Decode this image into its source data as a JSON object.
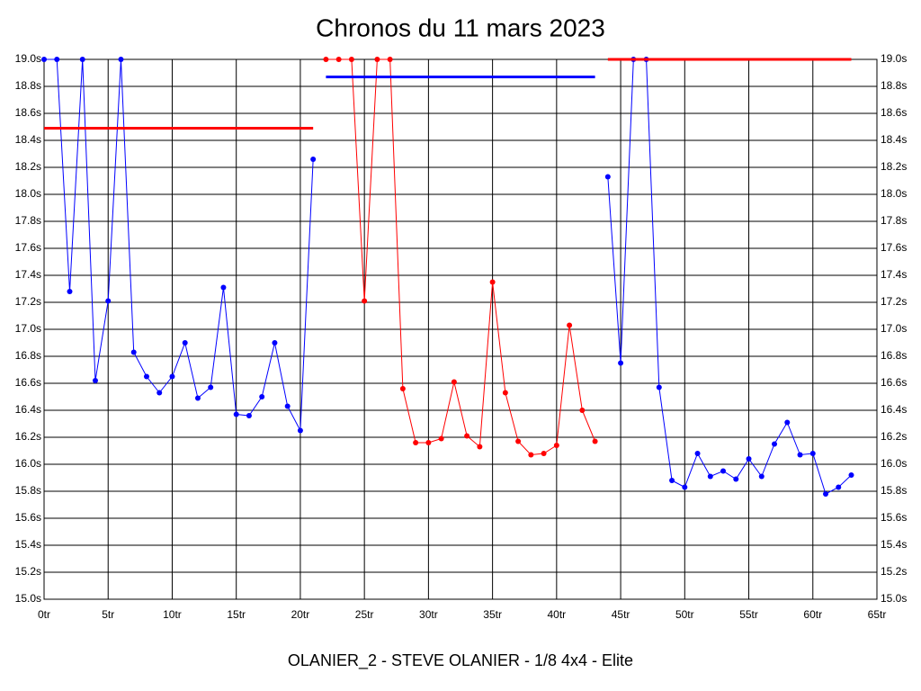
{
  "chart_data": {
    "type": "line",
    "title": "Chronos du 11 mars 2023",
    "x_label": "OLANIER_2 - STEVE OLANIER - 1/8 4x4 - Elite",
    "xlim": [
      0,
      65
    ],
    "xticks": [
      {
        "value": 0,
        "label": "0tr"
      },
      {
        "value": 5,
        "label": "5tr"
      },
      {
        "value": 10,
        "label": "10tr"
      },
      {
        "value": 15,
        "label": "15tr"
      },
      {
        "value": 20,
        "label": "20tr"
      },
      {
        "value": 25,
        "label": "25tr"
      },
      {
        "value": 30,
        "label": "30tr"
      },
      {
        "value": 35,
        "label": "35tr"
      },
      {
        "value": 40,
        "label": "40tr"
      },
      {
        "value": 45,
        "label": "45tr"
      },
      {
        "value": 50,
        "label": "50tr"
      },
      {
        "value": 55,
        "label": "55tr"
      },
      {
        "value": 60,
        "label": "60tr"
      },
      {
        "value": 65,
        "label": "65tr"
      }
    ],
    "ylim": [
      15,
      19
    ],
    "yticks": [
      {
        "value": 15,
        "label": "15.0s"
      },
      {
        "value": 15.2,
        "label": "15.2s"
      },
      {
        "value": 15.4,
        "label": "15.4s"
      },
      {
        "value": 15.6,
        "label": "15.6s"
      },
      {
        "value": 15.8,
        "label": "15.8s"
      },
      {
        "value": 16,
        "label": "16.0s"
      },
      {
        "value": 16.2,
        "label": "16.2s"
      },
      {
        "value": 16.4,
        "label": "16.4s"
      },
      {
        "value": 16.6,
        "label": "16.6s"
      },
      {
        "value": 16.8,
        "label": "16.8s"
      },
      {
        "value": 17,
        "label": "17.0s"
      },
      {
        "value": 17.2,
        "label": "17.2s"
      },
      {
        "value": 17.4,
        "label": "17.4s"
      },
      {
        "value": 17.6,
        "label": "17.6s"
      },
      {
        "value": 17.8,
        "label": "17.8s"
      },
      {
        "value": 18,
        "label": "18.0s"
      },
      {
        "value": 18.2,
        "label": "18.2s"
      },
      {
        "value": 18.4,
        "label": "18.4s"
      },
      {
        "value": 18.6,
        "label": "18.6s"
      },
      {
        "value": 18.8,
        "label": "18.8s"
      },
      {
        "value": 19,
        "label": "19.0s"
      }
    ],
    "grid": true,
    "series": [
      {
        "color": "#0000ff",
        "markers": true,
        "x": [
          0,
          1,
          2,
          3,
          4,
          5,
          6,
          7,
          8,
          9,
          10,
          11,
          12,
          13,
          14,
          15,
          16,
          17,
          18,
          19,
          20,
          21
        ],
        "values": [
          19.0,
          19.0,
          17.28,
          19.0,
          16.62,
          17.21,
          19.0,
          16.83,
          16.65,
          16.53,
          16.65,
          16.9,
          16.49,
          16.57,
          17.31,
          16.37,
          16.36,
          16.5,
          16.9,
          16.43,
          16.25,
          18.26
        ]
      },
      {
        "color": "#ff0000",
        "markers": true,
        "x": [
          22,
          23,
          24,
          25,
          26,
          27,
          28,
          29,
          30,
          31,
          32,
          33,
          34,
          35,
          36,
          37,
          38,
          39,
          40,
          41,
          42,
          43
        ],
        "values": [
          19.0,
          19.0,
          19.0,
          17.21,
          19.0,
          19.0,
          16.56,
          16.16,
          16.16,
          16.19,
          16.61,
          16.21,
          16.13,
          17.35,
          16.53,
          16.17,
          16.07,
          16.08,
          16.14,
          17.03,
          16.4,
          16.17
        ]
      },
      {
        "color": "#0000ff",
        "markers": true,
        "x": [
          44,
          45,
          46,
          47,
          48,
          49,
          50,
          51,
          52,
          53,
          54,
          55,
          56,
          57,
          58,
          59,
          60,
          61,
          62,
          63
        ],
        "values": [
          18.13,
          16.75,
          19.0,
          19.0,
          16.57,
          15.88,
          15.83,
          16.08,
          15.91,
          15.95,
          15.89,
          16.04,
          15.91,
          16.15,
          16.31,
          16.07,
          16.08,
          15.78,
          15.83,
          15.92
        ]
      },
      {
        "color": "#ff0000",
        "markers": false,
        "x": [
          0,
          21
        ],
        "values": [
          18.49,
          18.49
        ]
      },
      {
        "color": "#0000ff",
        "markers": false,
        "x": [
          22,
          43
        ],
        "values": [
          18.87,
          18.87
        ]
      },
      {
        "color": "#ff0000",
        "markers": false,
        "x": [
          44,
          63
        ],
        "values": [
          19.0,
          19.0
        ]
      }
    ]
  }
}
